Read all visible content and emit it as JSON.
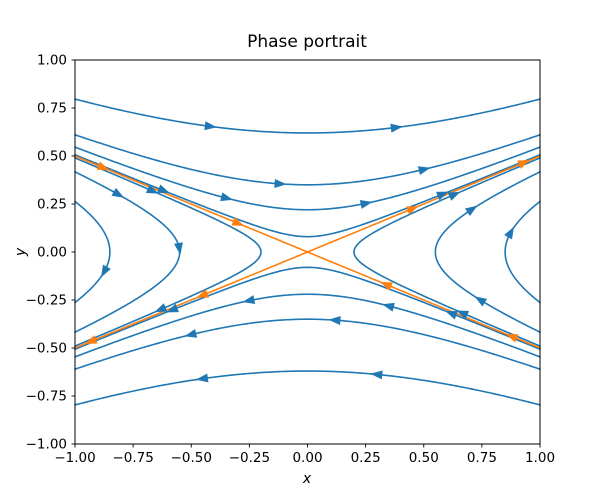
{
  "title": "Phase portrait",
  "axes": {
    "xlabel": "x",
    "ylabel": "y",
    "xlim": [
      -1,
      1
    ],
    "ylim": [
      -1,
      1
    ],
    "xticks": [
      -1,
      -0.75,
      -0.5,
      -0.25,
      0,
      0.25,
      0.5,
      0.75,
      1
    ],
    "xtick_labels": [
      "−1.00",
      "−0.75",
      "−0.50",
      "−0.25",
      "0.00",
      "0.25",
      "0.50",
      "0.75",
      "1.00"
    ],
    "yticks": [
      -1,
      -0.75,
      -0.5,
      -0.25,
      0,
      0.25,
      0.5,
      0.75,
      1
    ],
    "ytick_labels": [
      "−1.00",
      "−0.75",
      "−0.50",
      "−0.25",
      "0.00",
      "0.25",
      "0.50",
      "0.75",
      "1.00"
    ]
  },
  "colors": {
    "trajectory": "#1f77b4",
    "separatrix": "#ff7f0e",
    "axis": "#000000",
    "background": "#ffffff"
  },
  "chart_data": {
    "type": "line",
    "title": "Phase portrait",
    "xlabel": "x",
    "ylabel": "y",
    "xlim": [
      -1,
      1
    ],
    "ylim": [
      -1,
      1
    ],
    "grid": false,
    "legend": false,
    "description": "Phase portrait of a saddle equilibrium at the origin. Blue flow lines are hyperbolic trajectories satisfying x^2/4 - y^2 = C; orange lines are the separatrices (eigendirections) y = x/2 (unstable, flow outward) and y = -x/2 (stable, flow inward). Arrowheads mark flow direction: rightward along upper curves, leftward along lower curves, upward on right-hand curves, downward on left-hand curves.",
    "fixed_point": [
      0,
      0
    ],
    "separatrices": [
      {
        "name": "stable-upper-left",
        "from": [
          -1,
          0.5
        ],
        "to": [
          0,
          0
        ],
        "arrows": [
          0.12,
          0.7
        ]
      },
      {
        "name": "stable-lower-right",
        "from": [
          1,
          -0.5
        ],
        "to": [
          0,
          0
        ],
        "arrows": [
          0.12,
          0.66
        ]
      },
      {
        "name": "unstable-upper-right",
        "from": [
          0,
          0
        ],
        "to": [
          1,
          0.5
        ],
        "arrows": [
          0.45,
          0.93
        ]
      },
      {
        "name": "unstable-lower-left",
        "from": [
          0,
          0
        ],
        "to": [
          -1,
          -0.5
        ],
        "arrows": [
          0.45,
          0.93
        ]
      }
    ],
    "trajectories": [
      {
        "branch": "top",
        "vertex_y": 0.62,
        "arrows": [
          -0.42,
          0.38
        ]
      },
      {
        "branch": "top",
        "vertex_y": 0.35,
        "arrows": [
          -0.12,
          0.5
        ]
      },
      {
        "branch": "top",
        "vertex_y": 0.22,
        "arrows": [
          -0.35,
          0.25
        ]
      },
      {
        "branch": "top",
        "vertex_y": 0.08,
        "arrows": [
          -0.62,
          0.58
        ]
      },
      {
        "branch": "bottom",
        "vertex_y": -0.62,
        "arrows": [
          0.3,
          -0.45
        ]
      },
      {
        "branch": "bottom",
        "vertex_y": -0.35,
        "arrows": [
          0.12,
          -0.5
        ]
      },
      {
        "branch": "bottom",
        "vertex_y": -0.22,
        "arrows": [
          0.35,
          -0.25
        ]
      },
      {
        "branch": "bottom",
        "vertex_y": -0.08,
        "arrows": [
          0.62,
          -0.58
        ]
      },
      {
        "branch": "right",
        "vertex_x": 0.55,
        "arrows": [
          -0.25,
          0.22
        ]
      },
      {
        "branch": "right",
        "vertex_x": 0.85,
        "arrows": [
          0.1
        ]
      },
      {
        "branch": "right",
        "vertex_x": 0.2,
        "arrows": [
          -0.32,
          0.3
        ]
      },
      {
        "branch": "left",
        "vertex_x": -0.55,
        "arrows": [
          0.3,
          0.02
        ]
      },
      {
        "branch": "left",
        "vertex_x": -0.85,
        "arrows": [
          -0.1
        ]
      },
      {
        "branch": "left",
        "vertex_x": -0.2,
        "arrows": [
          0.32,
          -0.3
        ]
      }
    ]
  }
}
